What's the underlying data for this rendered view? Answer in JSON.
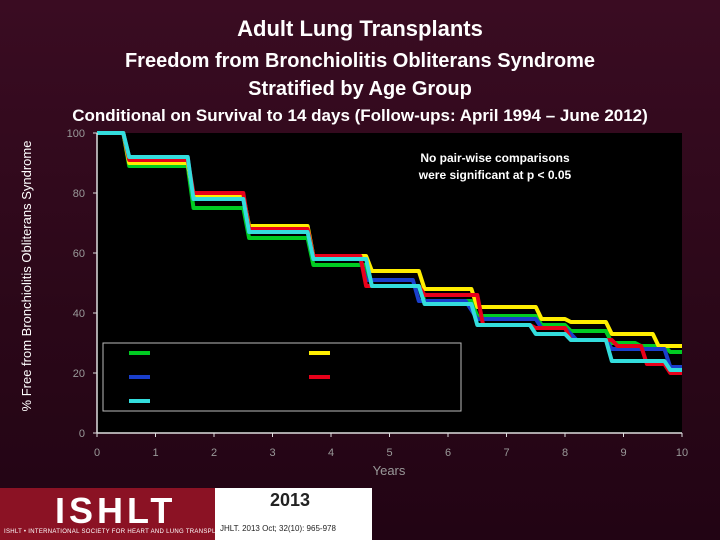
{
  "header": {
    "title": "Adult Lung Transplants",
    "subtitle1": "Freedom from Bronchiolitis Obliterans Syndrome",
    "subtitle2": "Stratified by Age Group",
    "subtitle3": "Conditional on Survival to 14 days (Follow-ups: April 1994 – June 2012)"
  },
  "annotation": {
    "line1": "No pair-wise comparisons",
    "line2": "were significant at p < 0.05"
  },
  "footer": {
    "logo_text": "ISHLT",
    "org_text": "ISHLT • INTERNATIONAL SOCIETY FOR HEART AND LUNG TRANSPLANTATION",
    "year": "2013",
    "citation": "JHLT. 2013 Oct; 32(10): 965-978"
  },
  "chart_data": {
    "type": "line",
    "step": true,
    "xlabel": "Years",
    "ylabel": "% Free from Bronchiolitis Obliterans Syndrome",
    "xlim": [
      0,
      10
    ],
    "ylim": [
      0,
      100
    ],
    "xticks": [
      0,
      1,
      2,
      3,
      4,
      5,
      6,
      7,
      8,
      9,
      10
    ],
    "yticks": [
      0,
      20,
      40,
      60,
      80,
      100
    ],
    "legend": {
      "position": "bottom-left",
      "labels_visible": false
    },
    "series": [
      {
        "color": "#00cc22",
        "x": [
          0,
          0.45,
          0.55,
          1.55,
          1.65,
          2.5,
          2.6,
          3.6,
          3.7,
          4.6,
          4.7,
          5.5,
          5.6,
          6.4,
          6.5,
          7.5,
          7.6,
          8.0,
          8.1,
          8.7,
          8.8,
          9.2,
          9.3,
          9.7,
          9.8,
          10
        ],
        "y": [
          100,
          100,
          89,
          89,
          75,
          75,
          65,
          65,
          56,
          56,
          49,
          49,
          44,
          44,
          39,
          39,
          36,
          36,
          34,
          34,
          30,
          30,
          29,
          29,
          27,
          27
        ]
      },
      {
        "color": "#ffee00",
        "x": [
          0,
          0.45,
          0.55,
          1.55,
          1.65,
          2.5,
          2.6,
          3.6,
          3.7,
          4.6,
          4.7,
          5.5,
          5.6,
          6.4,
          6.5,
          7.5,
          7.6,
          8.0,
          8.1,
          8.7,
          8.8,
          9.5,
          9.6,
          10
        ],
        "y": [
          100,
          100,
          90,
          90,
          79,
          79,
          69,
          69,
          59,
          59,
          54,
          54,
          48,
          48,
          42,
          42,
          38,
          38,
          37,
          37,
          33,
          33,
          29,
          29
        ]
      },
      {
        "color": "#1a3fcc",
        "x": [
          0,
          0.45,
          0.55,
          1.55,
          1.65,
          2.5,
          2.6,
          3.6,
          3.7,
          4.5,
          4.6,
          5.4,
          5.5,
          6.3,
          6.5,
          7.5,
          7.6,
          8.0,
          8.2,
          8.7,
          8.8,
          9.7,
          9.8,
          10
        ],
        "y": [
          100,
          100,
          92,
          92,
          78,
          78,
          67,
          67,
          58,
          58,
          51,
          51,
          44,
          44,
          38,
          38,
          35,
          35,
          31,
          31,
          28,
          28,
          22,
          22
        ]
      },
      {
        "color": "#e8001a",
        "x": [
          0,
          0.45,
          0.55,
          1.55,
          1.65,
          2.5,
          2.6,
          3.6,
          3.7,
          4.5,
          4.6,
          5.5,
          5.6,
          6.5,
          6.6,
          7.4,
          7.5,
          8.0,
          8.1,
          8.8,
          8.9,
          9.3,
          9.4,
          9.7,
          9.8,
          10
        ],
        "y": [
          100,
          100,
          91,
          91,
          80,
          80,
          68,
          68,
          59,
          59,
          49,
          49,
          46,
          46,
          36,
          36,
          35,
          35,
          31,
          31,
          29,
          29,
          23,
          23,
          20,
          20
        ]
      },
      {
        "color": "#33dddd",
        "x": [
          0,
          0.45,
          0.55,
          1.55,
          1.65,
          2.5,
          2.6,
          3.6,
          3.7,
          4.6,
          4.7,
          5.5,
          5.6,
          6.4,
          6.5,
          7.4,
          7.5,
          8.0,
          8.1,
          8.7,
          8.8,
          9.7,
          9.8,
          10
        ],
        "y": [
          100,
          100,
          92,
          92,
          78,
          78,
          67,
          67,
          58,
          58,
          49,
          49,
          43,
          43,
          36,
          36,
          33,
          33,
          31,
          31,
          24,
          24,
          21,
          21
        ]
      }
    ]
  }
}
